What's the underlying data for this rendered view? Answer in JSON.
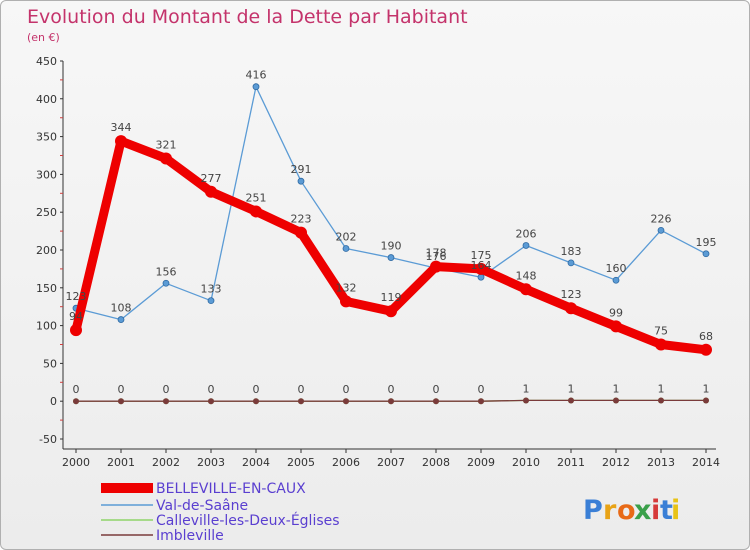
{
  "chart_data": {
    "type": "line",
    "title": "Evolution du Montant de la Dette par Habitant",
    "subtitle": "(en €)",
    "x": [
      "2000",
      "2001",
      "2002",
      "2003",
      "2004",
      "2005",
      "2006",
      "2007",
      "2008",
      "2009",
      "2010",
      "2011",
      "2012",
      "2013",
      "2014"
    ],
    "ylim": [
      -50,
      450
    ],
    "yticks": [
      -50,
      0,
      50,
      100,
      150,
      200,
      250,
      300,
      350,
      400,
      450
    ],
    "grid": false,
    "legend_placement": "bottom-left",
    "series": [
      {
        "name": "BELLEVILLE-EN-CAUX",
        "color": "#ee0000",
        "values": [
          94,
          344,
          321,
          277,
          251,
          223,
          132,
          119,
          178,
          175,
          148,
          123,
          99,
          75,
          68
        ],
        "labels": [
          "94",
          "344",
          "321",
          "277",
          "251",
          "223",
          "132",
          "119",
          "178",
          "175",
          "148",
          "123",
          "99",
          "75",
          "68"
        ]
      },
      {
        "name": "Val-de-Saâne",
        "color": "#5b9bd5",
        "values": [
          123,
          108,
          156,
          133,
          416,
          291,
          202,
          190,
          176,
          164,
          206,
          183,
          160,
          226,
          195
        ],
        "labels": [
          "123",
          "108",
          "156",
          "133",
          "416",
          "291",
          "202",
          "190",
          "176",
          "164",
          "206",
          "183",
          "160",
          "226",
          "195"
        ]
      },
      {
        "name": "Calleville-les-Deux-Églises",
        "color": "#8fd36a",
        "values": [
          0,
          0,
          0,
          0,
          0,
          0,
          0,
          0,
          0,
          0,
          1,
          1,
          1,
          1,
          1
        ],
        "labels": [
          "0",
          "0",
          "0",
          "0",
          "0",
          "0",
          "0",
          "0",
          "0",
          "0",
          "1",
          "1",
          "1",
          "1",
          "1"
        ]
      },
      {
        "name": "Imbleville",
        "color": "#7a3b3b",
        "values": [
          0,
          0,
          0,
          0,
          0,
          0,
          0,
          0,
          0,
          0,
          1,
          1,
          1,
          1,
          1
        ],
        "labels": [
          "0",
          "0",
          "0",
          "0",
          "0",
          "0",
          "0",
          "0",
          "0",
          "0",
          "1",
          "1",
          "1",
          "1",
          "1"
        ]
      }
    ]
  },
  "logo": {
    "text": "Proxiti",
    "chars": [
      "P",
      "r",
      "o",
      "x",
      "i",
      "t",
      "i"
    ],
    "colors": [
      "#3a7fd6",
      "#e8a317",
      "#e86a17",
      "#3aa04a",
      "#d63a3a",
      "#3a7fd6",
      "#e8c317"
    ]
  }
}
